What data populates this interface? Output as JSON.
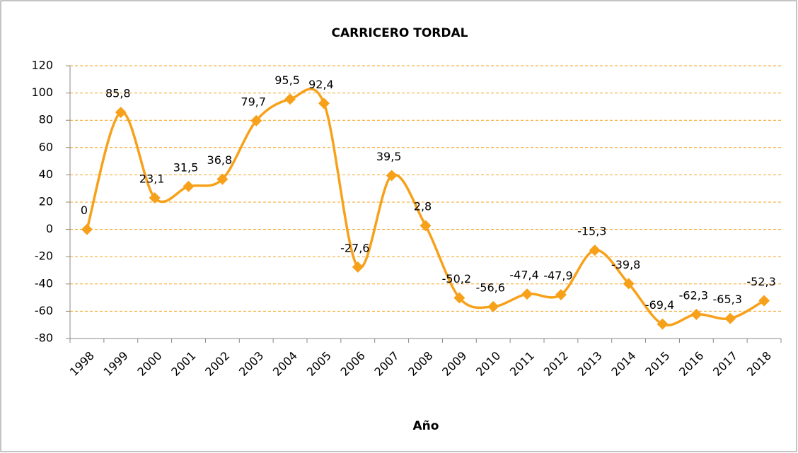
{
  "chart_data": {
    "type": "line",
    "title": "CARRICERO TORDAL",
    "x_label": "Año",
    "categories": [
      "1998",
      "1999",
      "2000",
      "2001",
      "2002",
      "2003",
      "2004",
      "2005",
      "2006",
      "2007",
      "2008",
      "2009",
      "2010",
      "2011",
      "2012",
      "2013",
      "2014",
      "2015",
      "2016",
      "2017",
      "2018"
    ],
    "values": [
      0,
      85.8,
      23.1,
      31.5,
      36.8,
      79.7,
      95.5,
      92.4,
      -27.6,
      39.5,
      2.8,
      -50.2,
      -56.6,
      -47.4,
      -47.9,
      -15.3,
      -39.8,
      -69.4,
      -62.3,
      -65.3,
      -52.3
    ],
    "value_labels": [
      "0",
      "85,8",
      "23,1",
      "31,5",
      "36,8",
      "79,7",
      "95,5",
      "92,4",
      "-27,6",
      "39,5",
      "2,8",
      "-50,2",
      "-56,6",
      "-47,4",
      "-47,9",
      "-15,3",
      "-39,8",
      "-69,4",
      "-62,3",
      "-65,3",
      "-52,3"
    ],
    "color": "#f7a11a",
    "smooth": true,
    "ylim": [
      -80,
      120
    ],
    "yticks": [
      -80,
      -60,
      -40,
      -20,
      0,
      20,
      40,
      60,
      80,
      100,
      120
    ],
    "grid": true
  }
}
